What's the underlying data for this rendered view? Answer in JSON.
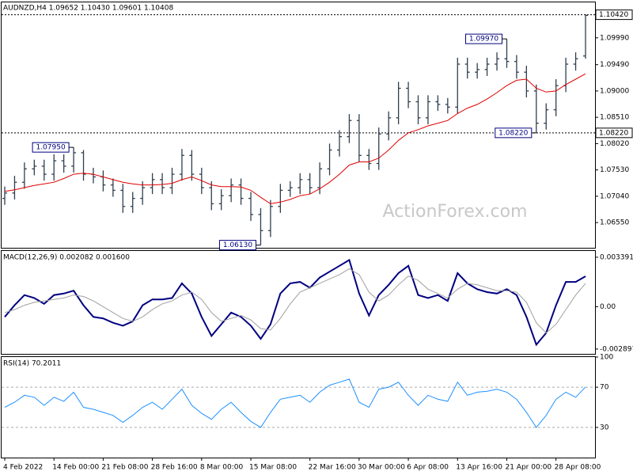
{
  "chart_data": [
    {
      "type": "ohlc",
      "title": "AUDNZD,H4 1.09652 1.10430 1.09601 1.10408",
      "watermark": "ActionForex.com",
      "color": "#2f3f4f",
      "open": [
        1.07,
        1.071,
        1.073,
        1.0755,
        1.076,
        1.0745,
        1.077,
        1.076,
        1.0785,
        1.0745,
        1.074,
        1.0725,
        1.0715,
        1.0685,
        1.07,
        1.072,
        1.0735,
        1.072,
        1.0745,
        1.078,
        1.0745,
        1.072,
        1.069,
        1.0705,
        1.0725,
        1.07,
        1.067,
        1.064,
        1.0685,
        1.0715,
        1.072,
        1.0735,
        1.072,
        1.0755,
        1.079,
        1.0815,
        1.0845,
        1.078,
        1.0765,
        1.082,
        1.085,
        1.0905,
        1.088,
        1.085,
        1.088,
        1.0875,
        1.087,
        1.095,
        1.0935,
        1.094,
        1.095,
        1.096,
        1.0955,
        1.0935,
        1.09,
        1.084,
        1.0865,
        1.091,
        1.095,
        1.09652
      ],
      "high": [
        1.0722,
        1.0742,
        1.0767,
        1.0772,
        1.0772,
        1.0782,
        1.0782,
        1.0795,
        1.079,
        1.0757,
        1.0752,
        1.0737,
        1.0727,
        1.0712,
        1.0732,
        1.0747,
        1.0747,
        1.0757,
        1.0792,
        1.079,
        1.0757,
        1.0732,
        1.0717,
        1.0737,
        1.0737,
        1.0712,
        1.0682,
        1.0697,
        1.0727,
        1.0732,
        1.0747,
        1.0747,
        1.0767,
        1.0802,
        1.0827,
        1.0857,
        1.0857,
        1.0792,
        1.0832,
        1.0862,
        1.0917,
        1.0917,
        1.0892,
        1.0892,
        1.0892,
        1.0887,
        1.0962,
        1.0962,
        1.0952,
        1.0962,
        1.0972,
        1.0997,
        1.0967,
        1.0947,
        1.0912,
        1.0877,
        1.0922,
        1.0962,
        1.0972,
        1.1043
      ],
      "low": [
        1.0688,
        1.0698,
        1.0718,
        1.0743,
        1.0733,
        1.0733,
        1.0748,
        1.0748,
        1.0733,
        1.0728,
        1.0713,
        1.0703,
        1.0673,
        1.0673,
        1.0688,
        1.0708,
        1.0708,
        1.0708,
        1.0733,
        1.0733,
        1.0708,
        1.0678,
        1.0678,
        1.0693,
        1.0688,
        1.0658,
        1.0613,
        1.0628,
        1.0673,
        1.0703,
        1.0708,
        1.0708,
        1.0708,
        1.0743,
        1.0778,
        1.0803,
        1.0768,
        1.0753,
        1.0753,
        1.0808,
        1.0838,
        1.0868,
        1.0838,
        1.0838,
        1.0863,
        1.0858,
        1.0858,
        1.0923,
        1.0923,
        1.0928,
        1.0938,
        1.0943,
        1.0923,
        1.0888,
        1.0822,
        1.0828,
        1.0853,
        1.0898,
        1.0938,
        1.09601
      ],
      "close": [
        1.071,
        1.073,
        1.0755,
        1.076,
        1.0745,
        1.077,
        1.076,
        1.0785,
        1.0745,
        1.074,
        1.0725,
        1.0715,
        1.0685,
        1.07,
        1.072,
        1.0735,
        1.072,
        1.0745,
        1.078,
        1.0745,
        1.072,
        1.069,
        1.0705,
        1.0725,
        1.07,
        1.067,
        1.064,
        1.0685,
        1.0715,
        1.072,
        1.0735,
        1.072,
        1.0755,
        1.079,
        1.0815,
        1.0845,
        1.078,
        1.0765,
        1.082,
        1.085,
        1.0905,
        1.088,
        1.085,
        1.088,
        1.0875,
        1.087,
        1.095,
        1.0935,
        1.094,
        1.095,
        1.096,
        1.0955,
        1.0935,
        1.09,
        1.084,
        1.0865,
        1.091,
        1.095,
        1.096,
        1.10408
      ],
      "series": [
        {
          "color": "#e00000",
          "values": [
            1.0713,
            1.0716,
            1.072,
            1.0724,
            1.0727,
            1.073,
            1.0737,
            1.0745,
            1.0747,
            1.0745,
            1.074,
            1.0735,
            1.073,
            1.0727,
            1.0725,
            1.0725,
            1.0726,
            1.0728,
            1.0735,
            1.074,
            1.0733,
            1.0725,
            1.0722,
            1.0722,
            1.0721,
            1.0715,
            1.0702,
            1.069,
            1.0693,
            1.0698,
            1.0705,
            1.0708,
            1.0718,
            1.073,
            1.0745,
            1.0762,
            1.0768,
            1.0768,
            1.0775,
            1.079,
            1.0808,
            1.0822,
            1.0828,
            1.0835,
            1.084,
            1.0845,
            1.0858,
            1.0868,
            1.0875,
            1.0885,
            1.0897,
            1.091,
            1.092,
            1.0922,
            1.0905,
            1.0898,
            1.09,
            1.0912,
            1.0922,
            1.0932
          ]
        }
      ],
      "price_lines": [
        {
          "value": 1.1042,
          "label": "1.10420"
        },
        {
          "value": 1.0822,
          "label": "1.08220"
        }
      ],
      "annotations": [
        {
          "value": 1.0795,
          "label": "1.07950"
        },
        {
          "value": 1.0613,
          "label": "1.06130"
        },
        {
          "value": 1.0997,
          "label": "1.09970"
        },
        {
          "value": 1.0822,
          "label": "1.08220"
        }
      ],
      "ylim": [
        1.0608,
        1.1065
      ],
      "yticks": [
        {
          "value": 1.0999,
          "label": "1.09990"
        },
        {
          "value": 1.0949,
          "label": "1.09490"
        },
        {
          "value": 1.09,
          "label": "1.09000"
        },
        {
          "value": 1.0851,
          "label": "1.08510"
        },
        {
          "value": 1.0802,
          "label": "1.08020"
        },
        {
          "value": 1.0753,
          "label": "1.07530"
        },
        {
          "value": 1.0704,
          "label": "1.07040"
        },
        {
          "value": 1.0655,
          "label": "1.06550"
        }
      ],
      "grid": false
    },
    {
      "type": "line",
      "title": "MACD(12,26,9) 0.002082 0.001600",
      "series": [
        {
          "color": "#000080",
          "values": [
            -0.0007,
            0.0001,
            0.0008,
            0.0006,
            0.0002,
            0.0008,
            0.0009,
            0.0011,
            0.0001,
            -0.0007,
            -0.0008,
            -0.0011,
            -0.0013,
            -0.001,
            0.0001,
            0.0005,
            0.0005,
            0.0006,
            0.0016,
            0.0009,
            -0.0007,
            -0.002,
            -0.0012,
            -0.0004,
            -0.0007,
            -0.0013,
            -0.0022,
            -0.0012,
            0.0009,
            0.0016,
            0.0017,
            0.0013,
            0.002,
            0.0024,
            0.0028,
            0.0032,
            0.0009,
            -0.0006,
            0.0008,
            0.0015,
            0.0023,
            0.0028,
            0.0008,
            0.0006,
            0.0008,
            0.0004,
            0.0023,
            0.0016,
            0.0012,
            0.001,
            0.0009,
            0.0012,
            0.0008,
            -0.0007,
            -0.0026,
            -0.0018,
            0.0001,
            0.0017,
            0.0017,
            0.002082
          ]
        },
        {
          "color": "#a0a0a0",
          "values": [
            -0.0004,
            -0.0002,
            0.0001,
            0.0003,
            0.0004,
            0.0005,
            0.0006,
            0.0008,
            0.0007,
            0.0004,
            0.0,
            -0.0004,
            -0.0008,
            -0.001,
            -0.0007,
            -0.0002,
            0.0002,
            0.0004,
            0.0008,
            0.001,
            0.0005,
            -0.0004,
            -0.001,
            -0.0008,
            -0.0006,
            -0.0009,
            -0.0015,
            -0.0016,
            -0.0008,
            0.0002,
            0.001,
            0.0013,
            0.0016,
            0.0019,
            0.0022,
            0.0026,
            0.0022,
            0.001,
            0.0004,
            0.0008,
            0.0015,
            0.0021,
            0.0018,
            0.0012,
            0.0009,
            0.0006,
            0.0012,
            0.0016,
            0.0015,
            0.0013,
            0.0011,
            0.0011,
            0.001,
            0.0003,
            -0.0011,
            -0.0018,
            -0.0012,
            -0.0002,
            0.0008,
            0.0016
          ]
        }
      ],
      "ylim": [
        -0.00323,
        0.00382
      ],
      "yticks": [
        0.003391,
        {
          "value": 0,
          "label": "0.00"
        },
        -0.002897
      ],
      "grid": false
    },
    {
      "type": "line",
      "title": "RSI(14) 70.2011",
      "categories": [
        "4 Feb 2022",
        null,
        null,
        null,
        null,
        "14 Feb 00:00",
        null,
        null,
        null,
        null,
        "21 Feb 08:00",
        null,
        null,
        null,
        null,
        "28 Feb 16:00",
        null,
        null,
        null,
        null,
        "8 Mar 00:00",
        null,
        null,
        null,
        null,
        "15 Mar 08:00",
        null,
        null,
        null,
        null,
        null,
        "22 Mar 16:00",
        null,
        null,
        null,
        null,
        "30 Mar 00:00",
        null,
        null,
        null,
        null,
        "6 Apr 08:00",
        null,
        null,
        null,
        null,
        "13 Apr 16:00",
        null,
        null,
        null,
        null,
        "21 Apr 00:00",
        null,
        null,
        null,
        null,
        "28 Apr 08:00",
        null,
        null,
        null
      ],
      "series": [
        {
          "color": "#1e90ff",
          "values": [
            50,
            55,
            62,
            60,
            52,
            60,
            56,
            65,
            50,
            48,
            45,
            42,
            35,
            42,
            50,
            55,
            48,
            58,
            68,
            52,
            44,
            38,
            48,
            55,
            45,
            36,
            30,
            45,
            58,
            60,
            62,
            55,
            65,
            72,
            75,
            78,
            55,
            50,
            68,
            70,
            75,
            62,
            52,
            62,
            58,
            56,
            75,
            62,
            65,
            66,
            68,
            65,
            58,
            45,
            30,
            42,
            58,
            65,
            60,
            70.2011
          ]
        }
      ],
      "ylim": [
        0,
        100
      ],
      "yticks": [
        100,
        70,
        30
      ],
      "grid": true
    }
  ]
}
